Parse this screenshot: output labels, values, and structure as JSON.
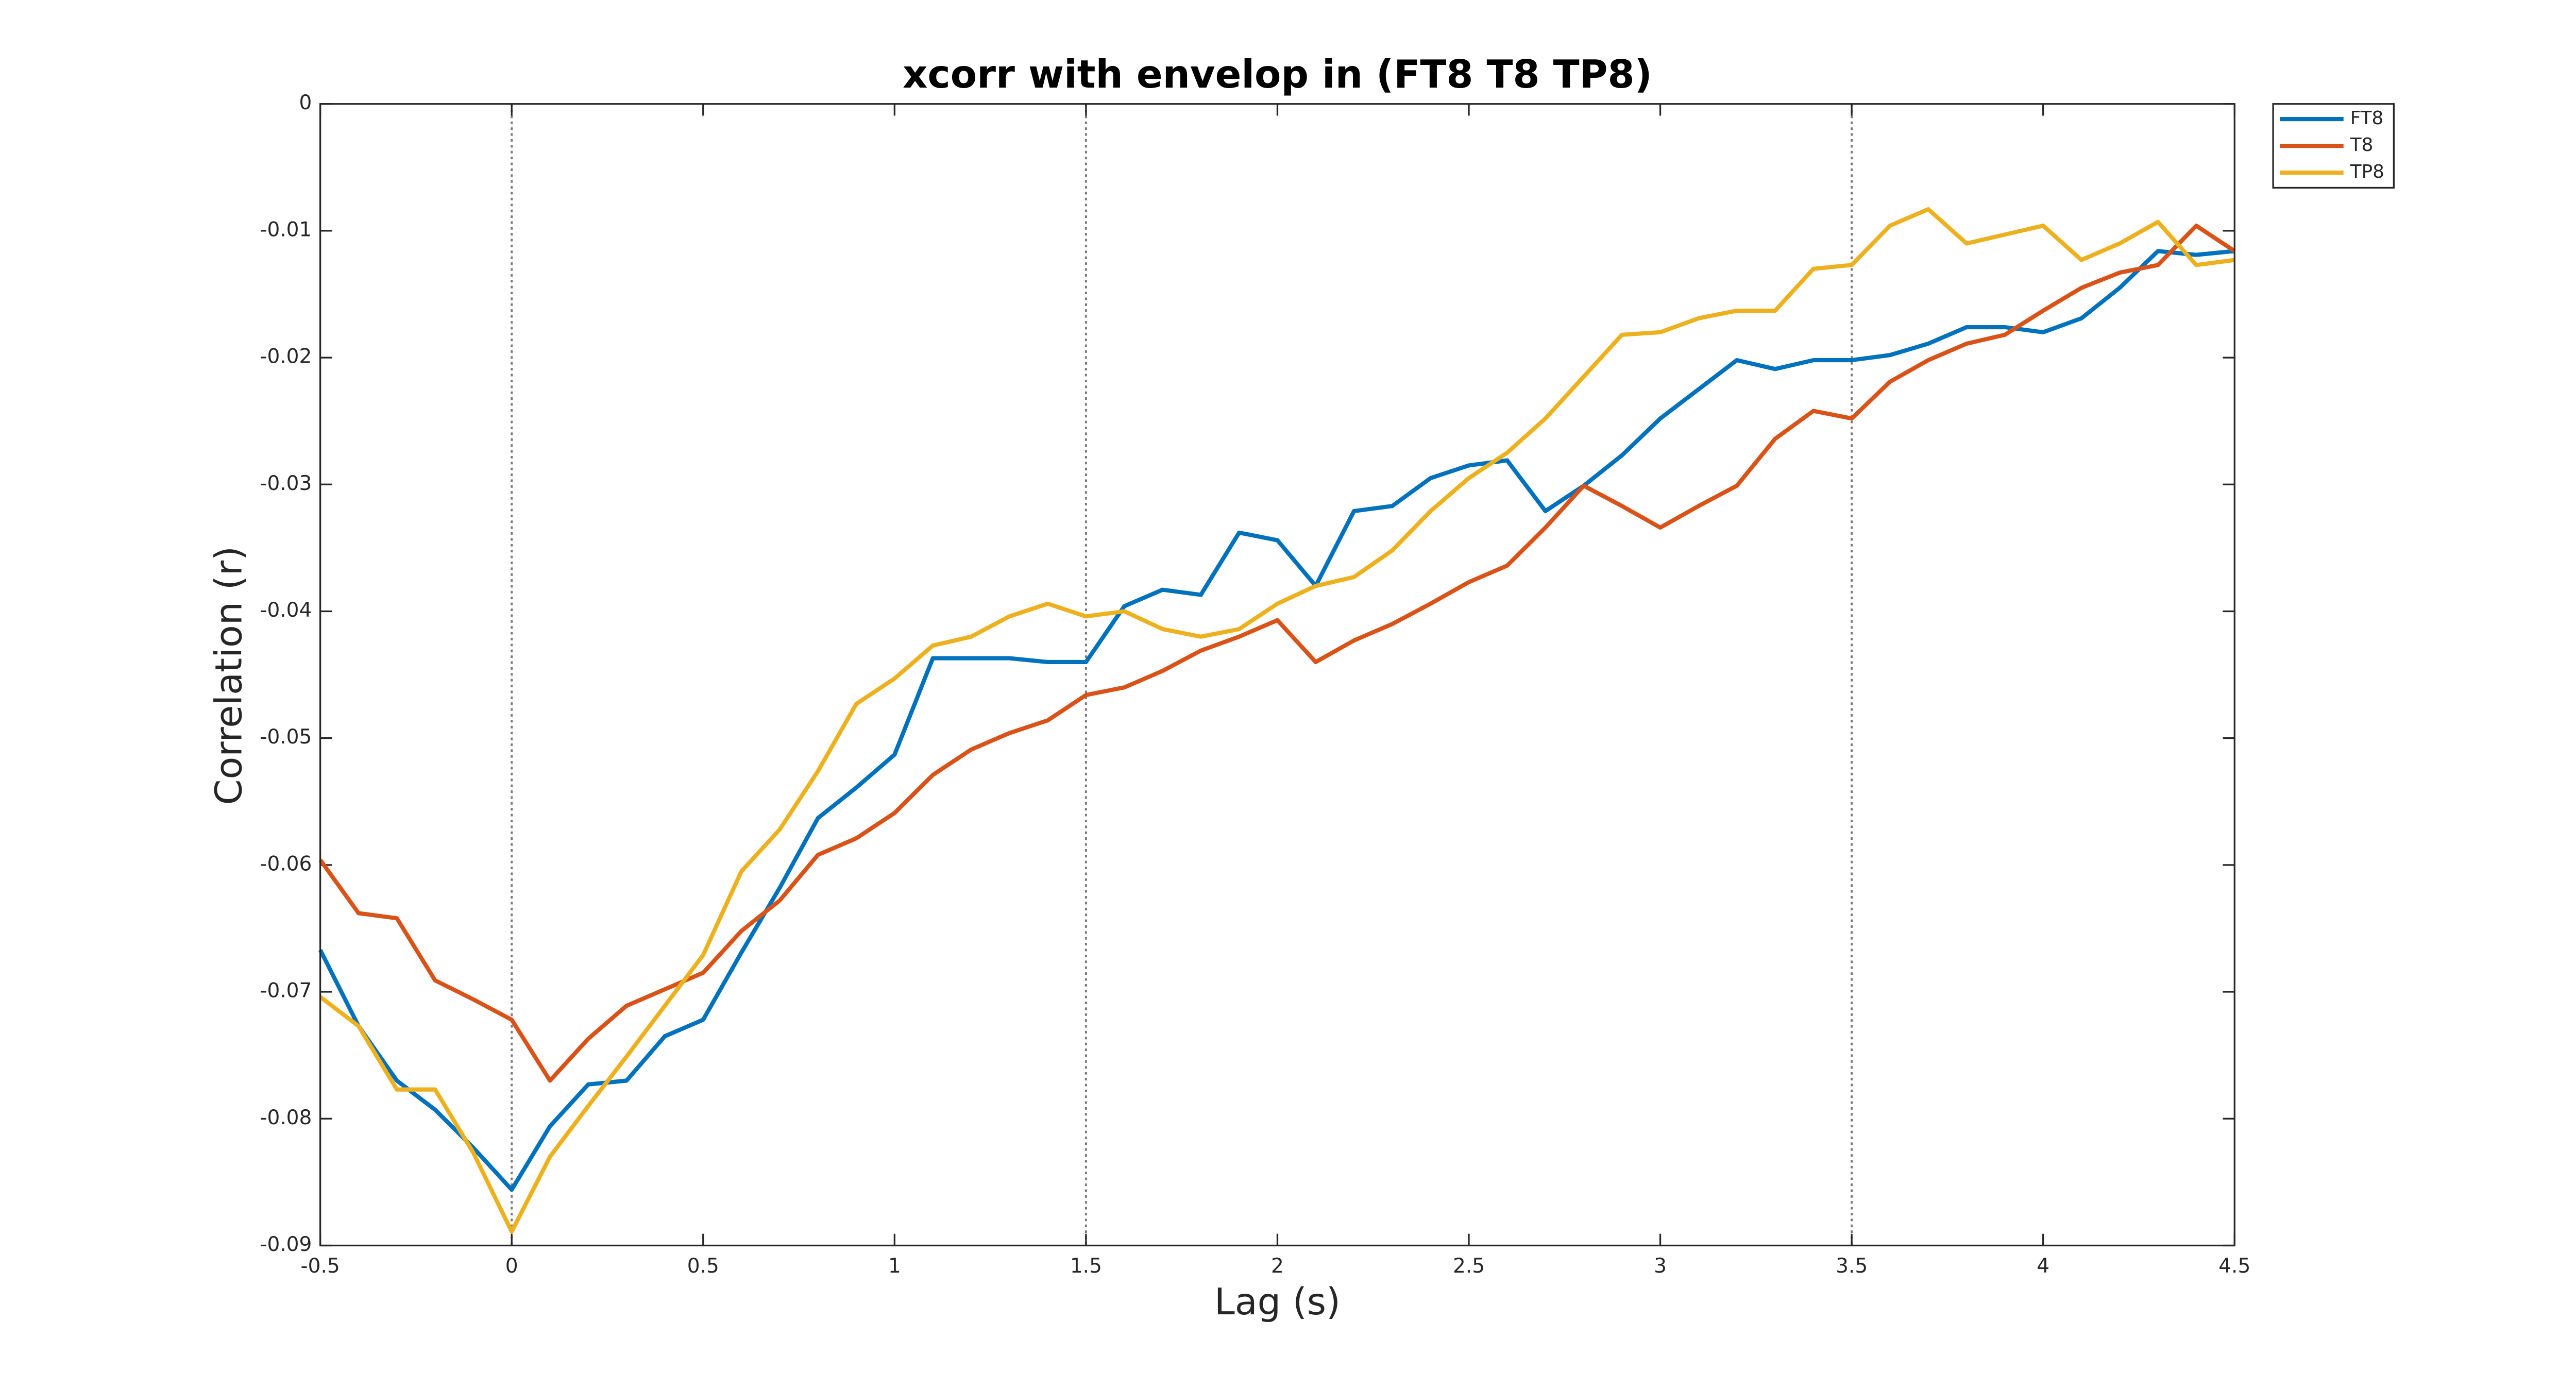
{
  "chart_data": {
    "type": "line",
    "title": "xcorr with envelop in (FT8 T8 TP8)",
    "x_label": "Lag (s)",
    "y_label": "Correlation (r)",
    "x": [
      -0.5,
      -0.4,
      -0.3,
      -0.2,
      -0.1,
      0,
      0.1,
      0.2,
      0.3,
      0.4,
      0.5,
      0.6,
      0.7,
      0.8,
      0.9,
      1,
      1.1,
      1.2,
      1.3,
      1.4,
      1.5,
      1.6,
      1.7,
      1.8,
      1.9,
      2,
      2.1,
      2.2,
      2.3,
      2.4,
      2.5,
      2.6,
      2.7,
      2.8,
      2.9,
      3,
      3.1,
      3.2,
      3.3,
      3.4,
      3.5,
      3.6,
      3.7,
      3.8,
      3.9,
      4,
      4.1,
      4.2,
      4.3,
      4.4,
      4.5
    ],
    "series": [
      {
        "name": "FT8",
        "color": "#0072BD",
        "values": [
          -0.0667,
          -0.0727,
          -0.077,
          -0.0793,
          -0.0823,
          -0.0856,
          -0.0806,
          -0.0773,
          -0.077,
          -0.0735,
          -0.0722,
          -0.0669,
          -0.0618,
          -0.0563,
          -0.0539,
          -0.0513,
          -0.0437,
          -0.0437,
          -0.0437,
          -0.044,
          -0.044,
          -0.0396,
          -0.0383,
          -0.0387,
          -0.0338,
          -0.0344,
          -0.038,
          -0.0321,
          -0.0317,
          -0.0295,
          -0.0285,
          -0.0281,
          -0.0321,
          -0.0301,
          -0.0277,
          -0.0248,
          -0.0225,
          -0.0202,
          -0.0209,
          -0.0202,
          -0.0202,
          -0.0198,
          -0.0189,
          -0.0176,
          -0.0176,
          -0.018,
          -0.0169,
          -0.0145,
          -0.0116,
          -0.0119,
          -0.0116
        ]
      },
      {
        "name": "T8",
        "color": "#D95319",
        "values": [
          -0.0596,
          -0.0638,
          -0.0642,
          -0.0691,
          -0.0706,
          -0.0722,
          -0.077,
          -0.0737,
          -0.0711,
          -0.0698,
          -0.0685,
          -0.0652,
          -0.0628,
          -0.0592,
          -0.0579,
          -0.0559,
          -0.0529,
          -0.0509,
          -0.0496,
          -0.0486,
          -0.0466,
          -0.046,
          -0.0447,
          -0.0431,
          -0.042,
          -0.0407,
          -0.044,
          -0.0423,
          -0.041,
          -0.0394,
          -0.0377,
          -0.0364,
          -0.0334,
          -0.0301,
          -0.0317,
          -0.0334,
          -0.0317,
          -0.0301,
          -0.0264,
          -0.0242,
          -0.0248,
          -0.0219,
          -0.0202,
          -0.0189,
          -0.0182,
          -0.0163,
          -0.0145,
          -0.0133,
          -0.0127,
          -0.0096,
          -0.0116
        ]
      },
      {
        "name": "TP8",
        "color": "#EDB120",
        "values": [
          -0.0704,
          -0.0727,
          -0.0777,
          -0.0777,
          -0.0827,
          -0.0889,
          -0.083,
          -0.079,
          -0.0751,
          -0.0711,
          -0.0671,
          -0.0605,
          -0.0572,
          -0.0526,
          -0.0473,
          -0.0453,
          -0.0427,
          -0.042,
          -0.0404,
          -0.0394,
          -0.0404,
          -0.04,
          -0.0414,
          -0.042,
          -0.0414,
          -0.0394,
          -0.038,
          -0.0373,
          -0.0352,
          -0.0321,
          -0.0295,
          -0.0275,
          -0.0248,
          -0.0215,
          -0.0182,
          -0.018,
          -0.0169,
          -0.0163,
          -0.0163,
          -0.013,
          -0.0127,
          -0.0096,
          -0.0083,
          -0.011,
          -0.0103,
          -0.0096,
          -0.0123,
          -0.011,
          -0.0093,
          -0.0127,
          -0.0123
        ]
      }
    ],
    "xlim": [
      -0.5,
      4.5
    ],
    "xticks": [
      -0.5,
      0,
      0.5,
      1,
      1.5,
      2,
      2.5,
      3,
      3.5,
      4,
      4.5
    ],
    "ylim": [
      -0.09,
      0
    ],
    "yticks": [
      -0.09,
      -0.08,
      -0.07,
      -0.06,
      -0.05,
      -0.04,
      -0.03,
      -0.02,
      -0.01,
      0
    ],
    "vlines": [
      0,
      1.5,
      3.5
    ],
    "grid": false,
    "legend": "outside-right-top"
  }
}
